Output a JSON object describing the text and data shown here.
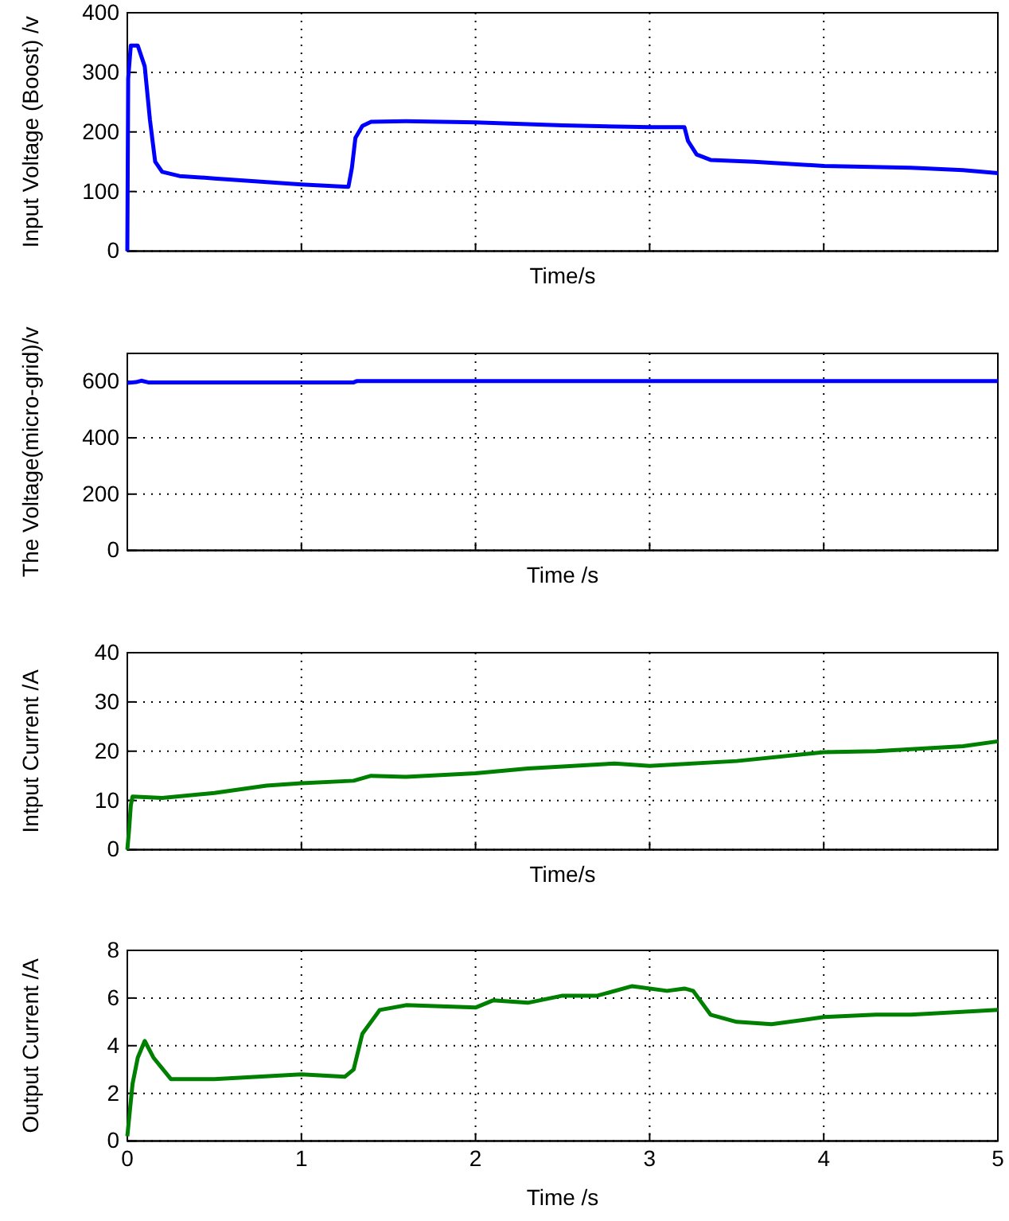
{
  "chart_data": [
    {
      "type": "line",
      "xlabel": "Time/s",
      "ylabel": "Input Voltage (Boost) /v",
      "xlim": [
        0,
        5
      ],
      "xticks": [
        0,
        1,
        2,
        3,
        4,
        5
      ],
      "ylim": [
        0,
        400
      ],
      "yticks": [
        0,
        100,
        200,
        300,
        400
      ],
      "grid": true,
      "tick_labels": "y",
      "color": "#0000ff",
      "x": [
        0,
        0.005,
        0.02,
        0.06,
        0.1,
        0.13,
        0.16,
        0.2,
        0.3,
        0.5,
        0.8,
        1.0,
        1.2,
        1.27,
        1.29,
        1.31,
        1.35,
        1.4,
        1.6,
        2.0,
        2.5,
        3.0,
        3.2,
        3.22,
        3.27,
        3.35,
        3.6,
        4.0,
        4.5,
        4.8,
        5.0
      ],
      "values": [
        0,
        290,
        345,
        345,
        310,
        220,
        150,
        133,
        126,
        122,
        116,
        112,
        109,
        108,
        140,
        190,
        210,
        217,
        218,
        216,
        211,
        208,
        208,
        185,
        162,
        153,
        150,
        143,
        140,
        136,
        131
      ]
    },
    {
      "type": "line",
      "xlabel": "Time /s",
      "ylabel": "The Voltage(micro-grid)/v",
      "xlim": [
        0,
        5
      ],
      "xticks": [
        0,
        1,
        2,
        3,
        4,
        5
      ],
      "ylim": [
        0,
        700
      ],
      "yticks": [
        0,
        200,
        400,
        600
      ],
      "grid": true,
      "tick_labels": "y",
      "color": "#0000ff",
      "x": [
        0,
        0.05,
        0.08,
        0.12,
        1.3,
        1.32,
        5
      ],
      "values": [
        595,
        598,
        603,
        597,
        597,
        602,
        602
      ]
    },
    {
      "type": "line",
      "xlabel": "Time/s",
      "ylabel": "Intput Current  /A",
      "xlim": [
        0,
        5
      ],
      "xticks": [
        0,
        1,
        2,
        3,
        4,
        5
      ],
      "ylim": [
        0,
        40
      ],
      "yticks": [
        0,
        10,
        20,
        30,
        40
      ],
      "grid": true,
      "tick_labels": "y",
      "color": "#008000",
      "x": [
        0,
        0.01,
        0.02,
        0.03,
        0.2,
        0.5,
        0.8,
        1.0,
        1.3,
        1.4,
        1.6,
        2.0,
        2.3,
        2.8,
        3.0,
        3.5,
        4.0,
        4.3,
        4.8,
        5.0
      ],
      "values": [
        0,
        4,
        9,
        10.8,
        10.5,
        11.5,
        13,
        13.5,
        14,
        15,
        14.8,
        15.5,
        16.5,
        17.5,
        17,
        18,
        19.8,
        20,
        21,
        22
      ]
    },
    {
      "type": "line",
      "xlabel": "Time /s",
      "ylabel": "Output Current  /A",
      "xlim": [
        0,
        5
      ],
      "xticks": [
        0,
        1,
        2,
        3,
        4,
        5
      ],
      "ylim": [
        0,
        8
      ],
      "yticks": [
        0,
        2,
        4,
        6,
        8
      ],
      "grid": true,
      "color": "#008000",
      "x": [
        0,
        0.03,
        0.06,
        0.1,
        0.15,
        0.25,
        0.5,
        1.0,
        1.25,
        1.3,
        1.35,
        1.45,
        1.6,
        2.0,
        2.1,
        2.3,
        2.5,
        2.7,
        2.9,
        3.1,
        3.2,
        3.25,
        3.35,
        3.5,
        3.7,
        4.0,
        4.3,
        4.5,
        5.0
      ],
      "values": [
        0.2,
        2.4,
        3.5,
        4.2,
        3.5,
        2.6,
        2.6,
        2.8,
        2.7,
        3,
        4.5,
        5.5,
        5.7,
        5.6,
        5.9,
        5.8,
        6.1,
        6.1,
        6.5,
        6.3,
        6.4,
        6.3,
        5.3,
        5.0,
        4.9,
        5.2,
        5.3,
        5.3,
        5.5
      ]
    }
  ]
}
